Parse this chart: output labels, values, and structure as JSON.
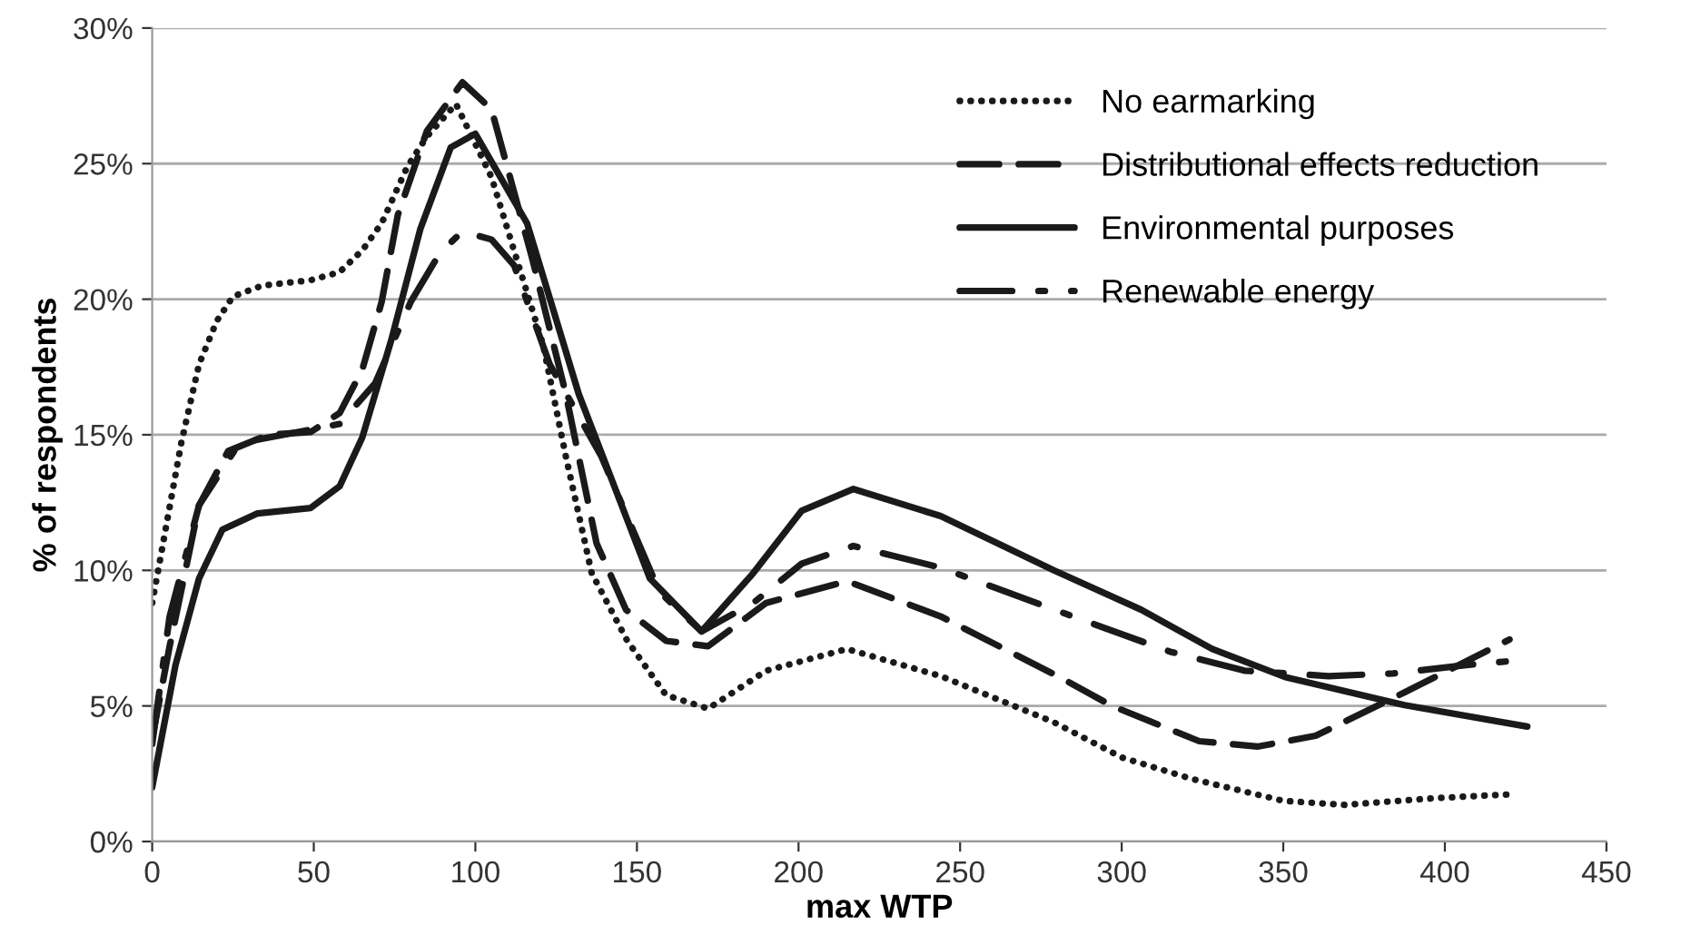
{
  "chart_data": {
    "type": "line",
    "xlabel": "max WTP",
    "ylabel": "% of respondents",
    "xlim": [
      0,
      450
    ],
    "xticks": [
      0,
      50,
      100,
      150,
      200,
      250,
      300,
      350,
      400,
      450
    ],
    "ylim": [
      0,
      30
    ],
    "yticks": [
      {
        "value": 0,
        "label": "0%"
      },
      {
        "value": 5,
        "label": "5%"
      },
      {
        "value": 10,
        "label": "10%"
      },
      {
        "value": 15,
        "label": "15%"
      },
      {
        "value": 20,
        "label": "20%"
      },
      {
        "value": 25,
        "label": "25%"
      },
      {
        "value": 30,
        "label": "30%"
      }
    ],
    "grid": "y",
    "legend": "top right",
    "marker": "none",
    "series": [
      {
        "name": "No earmarking",
        "color": "#1a1a1a",
        "line_style": "dotted",
        "x": [
          0,
          2,
          9,
          14.5,
          20,
          25,
          34,
          49,
          58,
          65,
          71,
          79,
          85,
          94,
          105,
          121,
          128,
          136,
          147,
          159,
          172,
          190,
          215,
          244,
          279,
          300,
          322,
          350,
          369,
          397,
          422
        ],
        "values": [
          8.8,
          10.1,
          14.7,
          17.6,
          19.2,
          20.1,
          20.5,
          20.7,
          21.0,
          21.8,
          22.8,
          24.9,
          26.0,
          27.2,
          24.5,
          18.3,
          14.2,
          9.9,
          7.4,
          5.4,
          4.9,
          6.3,
          7.1,
          6.1,
          4.4,
          3.1,
          2.3,
          1.5,
          1.35,
          1.6,
          1.75
        ]
      },
      {
        "name": "Distributional effects reduction",
        "color": "#1a1a1a",
        "line_style": "dashed",
        "x": [
          0,
          5.4,
          14.5,
          23.5,
          36,
          49,
          58,
          65,
          71,
          76,
          85,
          96,
          105,
          117.6,
          128,
          137.5,
          146.6,
          159,
          172,
          190,
          215,
          244,
          281,
          297,
          324,
          342,
          360,
          387.5,
          420
        ],
        "values": [
          3.8,
          7.2,
          12.4,
          14.4,
          15.0,
          15.1,
          15.8,
          17.4,
          19.9,
          23.1,
          26.2,
          28.0,
          27.0,
          21.5,
          16.5,
          11.0,
          8.55,
          7.4,
          7.2,
          8.8,
          9.6,
          8.3,
          6.05,
          5.0,
          3.7,
          3.5,
          3.9,
          5.5,
          7.45
        ]
      },
      {
        "name": "Environmental purposes",
        "color": "#1a1a1a",
        "line_style": "solid",
        "x": [
          0,
          7.2,
          14.5,
          21.7,
          32.6,
          49,
          58,
          65,
          74,
          83,
          92.4,
          100,
          116,
          132,
          154,
          170,
          186,
          201,
          217,
          244,
          279,
          306,
          328,
          351,
          387.5,
          425.5
        ],
        "values": [
          2.0,
          6.5,
          9.7,
          11.5,
          12.1,
          12.3,
          13.1,
          14.9,
          18.5,
          22.6,
          25.6,
          26.1,
          22.8,
          16.5,
          9.7,
          7.75,
          9.9,
          12.2,
          13.0,
          12.0,
          10.0,
          8.55,
          7.1,
          6.05,
          5.03,
          4.24
        ]
      },
      {
        "name": "Renewable energy",
        "color": "#1a1a1a",
        "line_style": "dashdot",
        "x": [
          0,
          5.4,
          14.5,
          27,
          45,
          58,
          69,
          80,
          89,
          96,
          105,
          112,
          123,
          139,
          157,
          170,
          186,
          201,
          217,
          244,
          286,
          315,
          338,
          364,
          384,
          406,
          420
        ],
        "values": [
          3.6,
          8.3,
          12.4,
          14.7,
          15.1,
          15.4,
          16.9,
          19.9,
          21.7,
          22.5,
          22.2,
          21.25,
          17.6,
          14.2,
          9.2,
          7.75,
          8.8,
          10.25,
          10.9,
          10.1,
          8.25,
          7.0,
          6.3,
          6.1,
          6.2,
          6.5,
          6.65
        ]
      }
    ]
  }
}
